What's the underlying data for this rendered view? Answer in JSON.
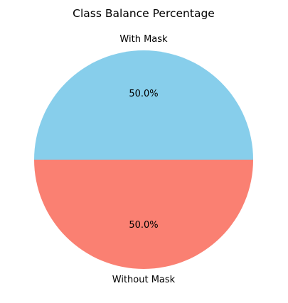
{
  "chart_data": {
    "type": "pie",
    "title": "Class Balance Percentage",
    "labels": [
      "With Mask",
      "Without Mask"
    ],
    "values": [
      50.0,
      50.0
    ],
    "percent_labels": [
      "50.0%",
      "50.0%"
    ],
    "colors": [
      "#87ceeb",
      "#fa8072"
    ],
    "start_angle_deg": 0,
    "direction": "counterclockwise"
  }
}
